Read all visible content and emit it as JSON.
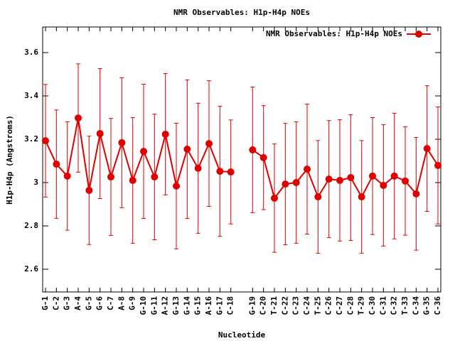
{
  "chart_data": {
    "type": "line",
    "title": "NMR Observables: H1p-H4p NOEs",
    "xlabel": "Nucleotide",
    "ylabel": "H1p-H4p (Angstroms)",
    "categories": [
      "G-1",
      "C-2",
      "G-3",
      "A-4",
      "G-5",
      "G-6",
      "C-7",
      "A-8",
      "G-9",
      "G-10",
      "G-11",
      "A-12",
      "G-13",
      "G-14",
      "G-15",
      "A-16",
      "G-17",
      "C-18",
      null,
      "G-19",
      "C-20",
      "T-21",
      "C-22",
      "C-23",
      "C-24",
      "T-25",
      "C-26",
      "C-27",
      "C-28",
      "T-29",
      "C-30",
      "C-31",
      "C-32",
      "T-33",
      "C-34",
      "G-35",
      "C-36"
    ],
    "series": [
      {
        "name": "NMR Observables: H1p-H4p NOEs",
        "color": "#e00000",
        "values": [
          3.193,
          3.085,
          3.03,
          3.298,
          2.964,
          3.226,
          3.026,
          3.184,
          3.01,
          3.144,
          3.026,
          3.223,
          2.984,
          3.154,
          3.066,
          3.18,
          3.052,
          3.049,
          null,
          3.151,
          3.115,
          2.928,
          2.993,
          3.0,
          3.062,
          2.934,
          3.016,
          3.01,
          3.023,
          2.934,
          3.03,
          2.987,
          3.03,
          3.007,
          2.948,
          3.157,
          3.079
        ],
        "errors": [
          0.26,
          0.25,
          0.25,
          0.25,
          0.25,
          0.3,
          0.27,
          0.3,
          0.29,
          0.31,
          0.29,
          0.28,
          0.29,
          0.32,
          0.3,
          0.29,
          0.3,
          0.24,
          null,
          0.29,
          0.24,
          0.25,
          0.28,
          0.28,
          0.3,
          0.26,
          0.27,
          0.28,
          0.29,
          0.26,
          0.27,
          0.28,
          0.29,
          0.25,
          0.26,
          0.29,
          0.27
        ]
      }
    ],
    "ylim": [
      2.495,
      3.718
    ],
    "yticks": [
      2.6,
      2.8,
      3,
      3.2,
      3.4,
      3.6
    ],
    "legend": "upper right"
  }
}
